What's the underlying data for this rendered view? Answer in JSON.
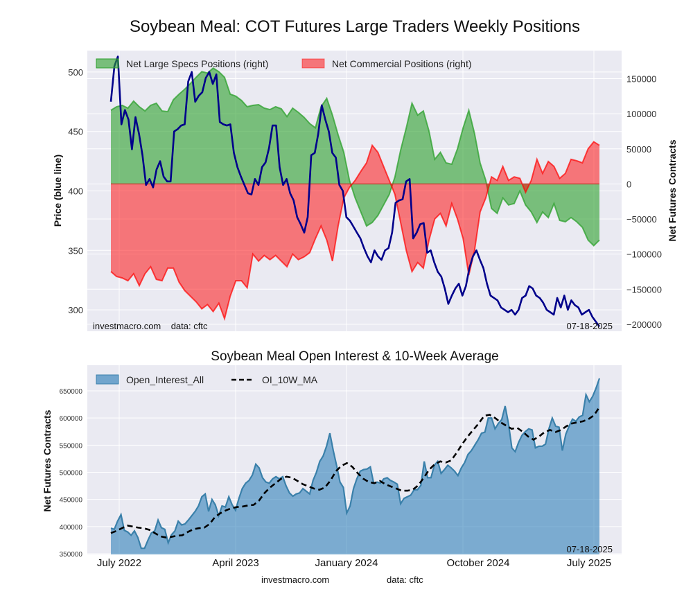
{
  "chart_data": [
    {
      "type": "area",
      "title": "Soybean Meal: COT Futures Large Traders Weekly Positions",
      "ylabel": "Price (blue line)",
      "ylabel_right": "Net Futures Contracts",
      "ylim": [
        282,
        518
      ],
      "ylim_right": [
        -210000,
        190000
      ],
      "yticks": [
        "300",
        "350",
        "400",
        "450",
        "500"
      ],
      "yticks_right": [
        "150000",
        "100000",
        "50000",
        "0",
        "−50000",
        "−100000",
        "−150000",
        "−200000"
      ],
      "grid": true,
      "legend": "top-left",
      "x_range": [
        "2022-06",
        "2025-07"
      ],
      "series": [
        {
          "name": "Net Large Specs Positions (right)",
          "color": "#2ca02c",
          "values": [
            105000,
            110000,
            112000,
            108000,
            118000,
            110000,
            104000,
            112000,
            115000,
            104000,
            103000,
            120000,
            128000,
            135000,
            143000,
            152000,
            160000,
            158000,
            165000,
            160000,
            152000,
            128000,
            125000,
            119000,
            110000,
            112000,
            113000,
            108000,
            106000,
            110000,
            107000,
            96000,
            108000,
            102000,
            95000,
            86000,
            80000,
            110000,
            122000,
            98000,
            70000,
            45000,
            5000,
            -20000,
            -40000,
            -60000,
            -55000,
            -45000,
            -30000,
            -15000,
            10000,
            48000,
            80000,
            115000,
            98000,
            104000,
            75000,
            35000,
            45000,
            30000,
            28000,
            50000,
            80000,
            105000,
            72000,
            30000,
            5000,
            -35000,
            -42000,
            -20000,
            -30000,
            -28000,
            -10000,
            -30000,
            -40000,
            -55000,
            -40000,
            -48000,
            -28000,
            -52000,
            -54000,
            -48000,
            -54000,
            -62000,
            -80000,
            -88000,
            -80000
          ],
          "note": "approximate weekly samples Jun 2022 - Jul 2025"
        },
        {
          "name": "Net Commercial Positions (right)",
          "color": "#ff0000",
          "values": [
            -125000,
            -132000,
            -134000,
            -138000,
            -128000,
            -145000,
            -128000,
            -118000,
            -136000,
            -138000,
            -120000,
            -120000,
            -140000,
            -152000,
            -160000,
            -168000,
            -178000,
            -172000,
            -182000,
            -170000,
            -192000,
            -160000,
            -138000,
            -138000,
            -148000,
            -100000,
            -110000,
            -102000,
            -108000,
            -102000,
            -110000,
            -118000,
            -100000,
            -108000,
            -104000,
            -98000,
            -78000,
            -60000,
            -80000,
            -110000,
            -60000,
            -20000,
            -5000,
            5000,
            18000,
            30000,
            55000,
            45000,
            25000,
            5000,
            -15000,
            -55000,
            -95000,
            -125000,
            -112000,
            -120000,
            -80000,
            -50000,
            -42000,
            -60000,
            -28000,
            -50000,
            -78000,
            -130000,
            -95000,
            -40000,
            -20000,
            10000,
            5000,
            25000,
            5000,
            10000,
            8000,
            -12000,
            5000,
            35000,
            15000,
            32000,
            25000,
            8000,
            15000,
            35000,
            33000,
            30000,
            50000,
            60000,
            55000
          ]
        },
        {
          "name": "Price (blue line)",
          "axis": "left",
          "color": "#00008b",
          "values": [
            475,
            505,
            513,
            456,
            468,
            460,
            435,
            462,
            448,
            430,
            405,
            410,
            403,
            418,
            425,
            412,
            408,
            408,
            450,
            452,
            455,
            456,
            492,
            500,
            475,
            480,
            483,
            495,
            500,
            490,
            498,
            458,
            456,
            455,
            456,
            432,
            420,
            412,
            405,
            398,
            397,
            410,
            405,
            420,
            424,
            436,
            455,
            455,
            420,
            405,
            410,
            398,
            392,
            378,
            372,
            365,
            378,
            430,
            432,
            448,
            472,
            460,
            450,
            432,
            428,
            405,
            400,
            378,
            375,
            370,
            365,
            360,
            352,
            345,
            340,
            350,
            345,
            342,
            350,
            352,
            365,
            390,
            392,
            393,
            408,
            410,
            360,
            365,
            372,
            373,
            348,
            350,
            340,
            332,
            328,
            318,
            305,
            312,
            318,
            322,
            312,
            320,
            335,
            345,
            350,
            342,
            335,
            322,
            312,
            310,
            308,
            302,
            300,
            298,
            300,
            296,
            300,
            310,
            312,
            320,
            318,
            312,
            310,
            306,
            300,
            298,
            296,
            310,
            302,
            312,
            300,
            308,
            304,
            302,
            296,
            298,
            300,
            294,
            290,
            286
          ]
        }
      ],
      "annotations": [
        "investmacro.com    data: cftc",
        "07-18-2025"
      ]
    },
    {
      "type": "area",
      "title": "Soybean Meal Open Interest & 10-Week Average",
      "ylabel": "Net Futures Contracts",
      "ylim": [
        350000,
        690000
      ],
      "yticks": [
        "350000",
        "400000",
        "450000",
        "500000",
        "550000",
        "600000",
        "650000"
      ],
      "xticks": [
        "July 2022",
        "April 2023",
        "January 2024",
        "October 2024",
        "July 2025"
      ],
      "grid": true,
      "legend": "top-left",
      "series": [
        {
          "name": "Open_Interest_All",
          "color": "#1f77b4",
          "values": [
            397000,
            395000,
            410000,
            422000,
            393000,
            390000,
            384000,
            392000,
            380000,
            360000,
            360000,
            375000,
            388000,
            392000,
            412000,
            398000,
            395000,
            370000,
            385000,
            392000,
            410000,
            403000,
            405000,
            412000,
            420000,
            428000,
            438000,
            455000,
            460000,
            428000,
            450000,
            440000,
            420000,
            438000,
            436000,
            455000,
            440000,
            430000,
            452000,
            470000,
            480000,
            485000,
            495000,
            515000,
            508000,
            490000,
            482000,
            480000,
            488000,
            492000,
            488000,
            492000,
            475000,
            462000,
            456000,
            460000,
            462000,
            470000,
            465000,
            460000,
            485000,
            500000,
            520000,
            530000,
            548000,
            572000,
            540000,
            512000,
            482000,
            472000,
            425000,
            438000,
            470000,
            488000,
            502000,
            505000,
            506000,
            510000,
            480000,
            482000,
            480000,
            488000,
            490000,
            485000,
            482000,
            478000,
            442000,
            452000,
            455000,
            458000,
            468000,
            468000,
            476000,
            520000,
            490000,
            490000,
            513000,
            520000,
            498000,
            505000,
            513000,
            508000,
            502000,
            494000,
            508000,
            518000,
            533000,
            540000,
            550000,
            560000,
            572000,
            574000,
            600000,
            600000,
            580000,
            590000,
            597000,
            622000,
            590000,
            545000,
            538000,
            555000,
            568000,
            575000,
            580000,
            578000,
            545000,
            548000,
            548000,
            552000,
            580000,
            600000,
            585000,
            583000,
            540000,
            570000,
            585000,
            598000,
            594000,
            602000,
            605000,
            643000,
            630000,
            640000,
            655000,
            673000
          ]
        },
        {
          "name": "OI_10W_MA",
          "color": "#000000",
          "style": "dashed",
          "values": [
            388000,
            392000,
            397000,
            402000,
            400000,
            398000,
            397000,
            394000,
            388000,
            382000,
            380000,
            381000,
            383000,
            384000,
            390000,
            395000,
            397000,
            398000,
            405000,
            418000,
            425000,
            430000,
            434000,
            436000,
            437000,
            439000,
            440000,
            448000,
            462000,
            472000,
            480000,
            488000,
            492000,
            490000,
            484000,
            478000,
            474000,
            470000,
            468000,
            472000,
            485000,
            502000,
            512000,
            517000,
            510000,
            498000,
            488000,
            482000,
            480000,
            484000,
            478000,
            474000,
            470000,
            466000,
            466000,
            468000,
            476000,
            490000,
            505000,
            515000,
            520000,
            518000,
            522000,
            536000,
            552000,
            566000,
            578000,
            590000,
            604000,
            606000,
            600000,
            592000,
            586000,
            580000,
            582000,
            575000,
            566000,
            560000,
            566000,
            574000,
            578000,
            574000,
            578000,
            585000,
            590000,
            592000,
            594000,
            598000,
            605000,
            620000
          ]
        }
      ],
      "annotations": [
        "07-18-2025"
      ]
    }
  ],
  "footer": {
    "site": "investmacro.com",
    "source": "data: cftc"
  }
}
